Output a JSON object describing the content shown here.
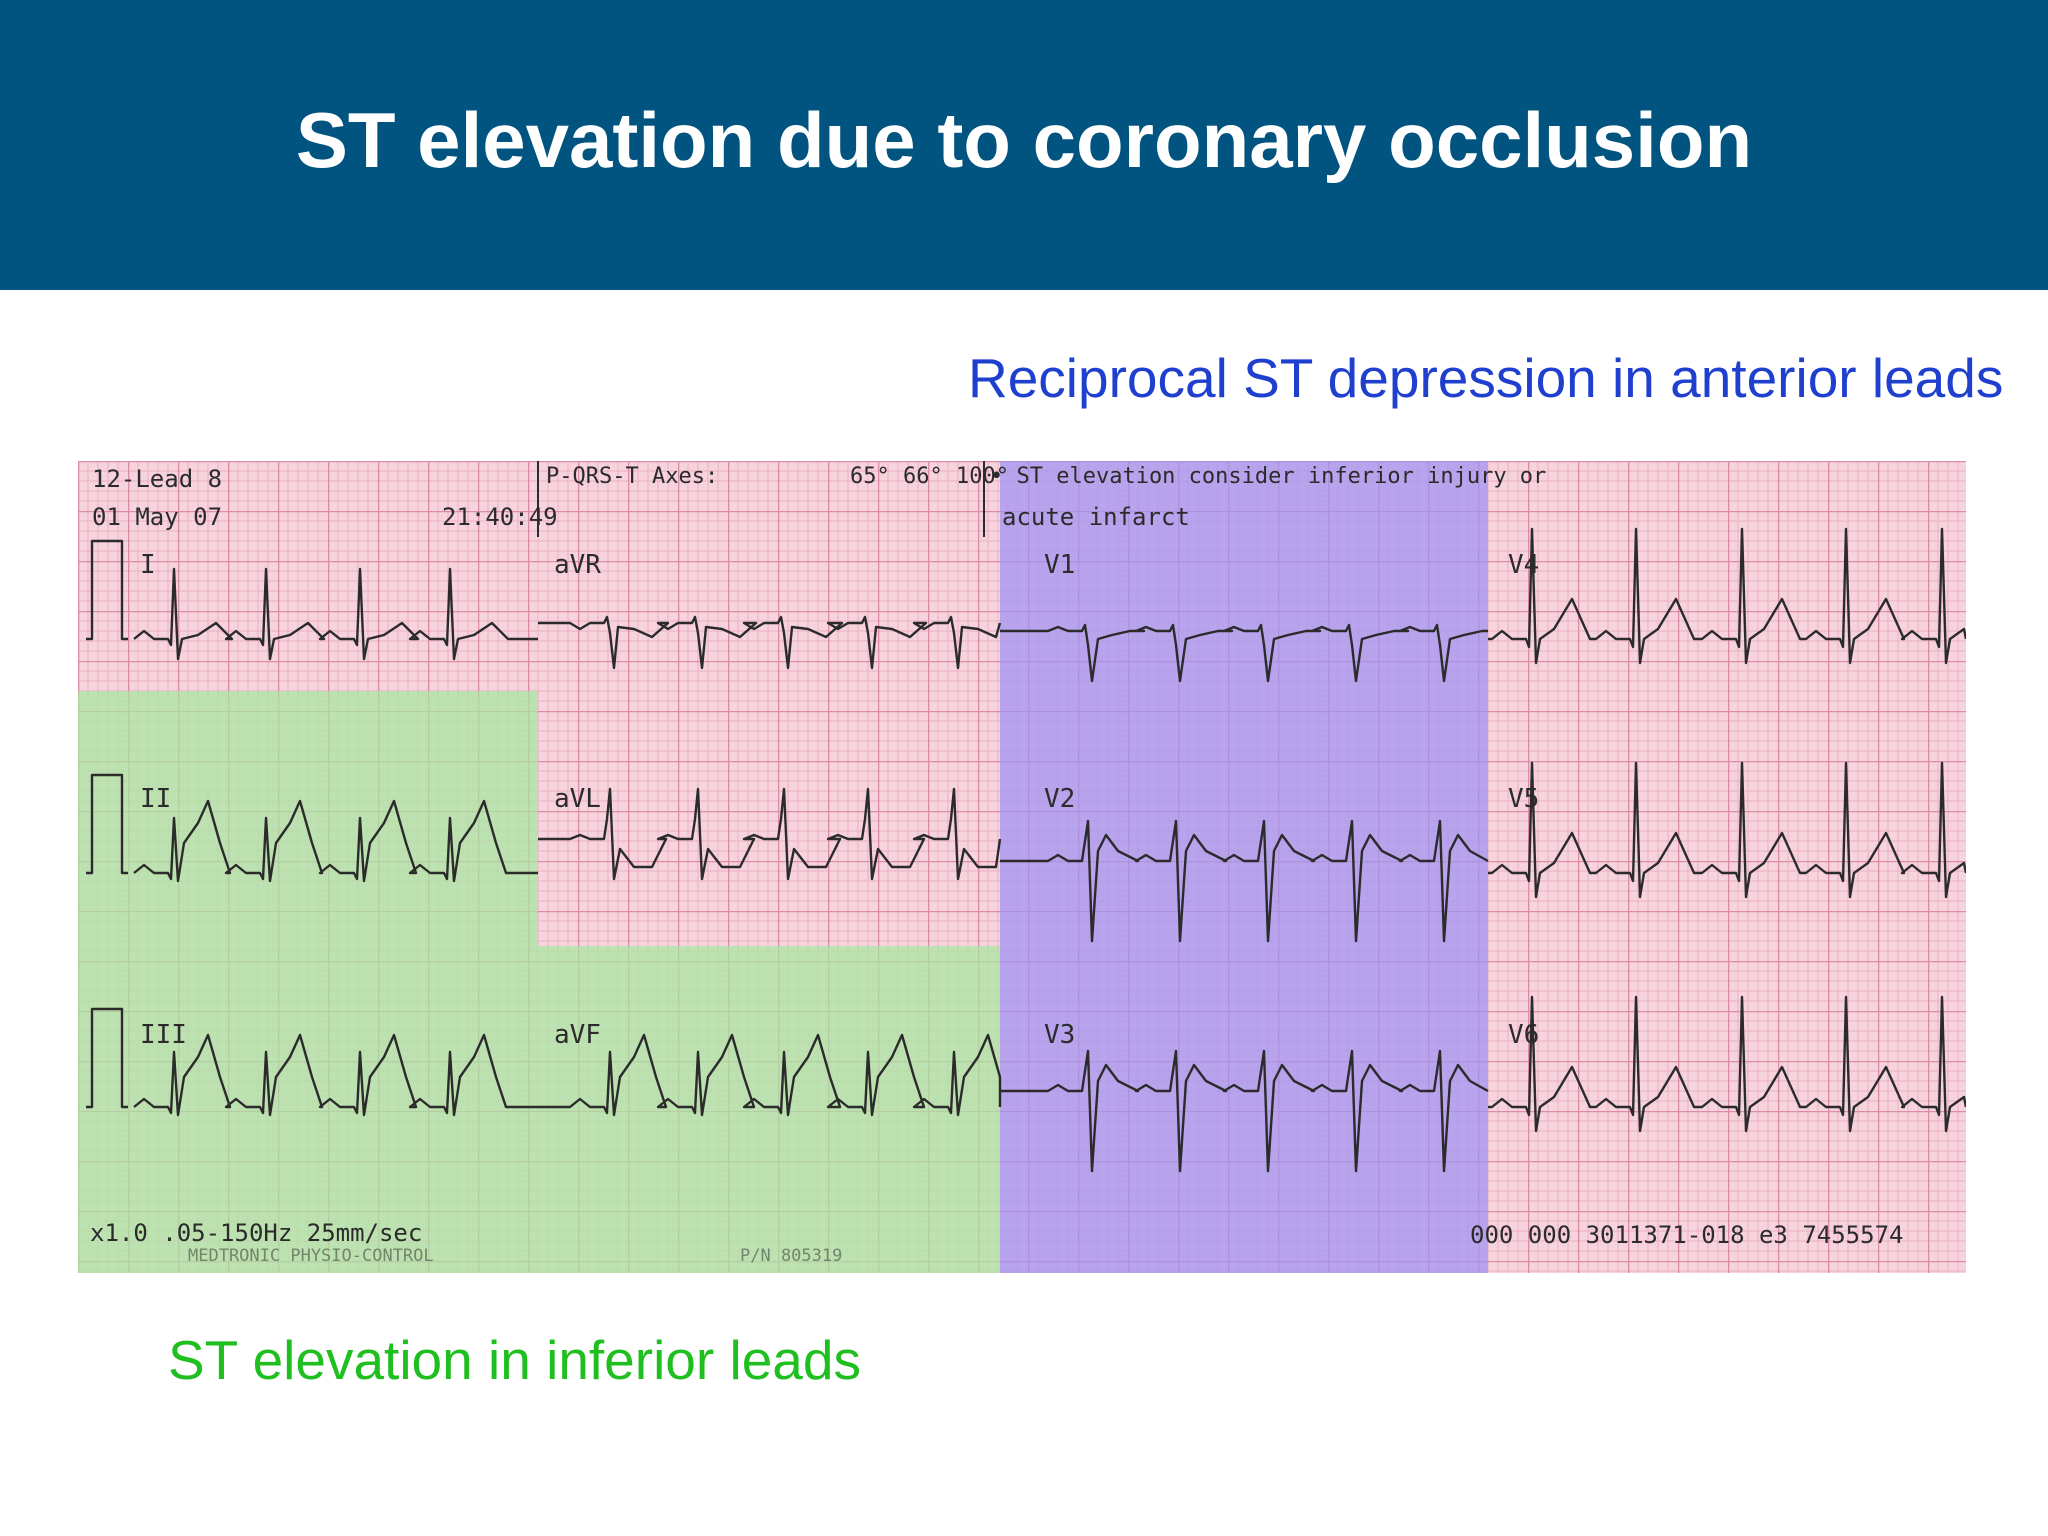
{
  "slide": {
    "title": "ST elevation due to coronary occlusion",
    "title_bar_color": "#00547f"
  },
  "annotations": {
    "reciprocal": {
      "text": "Reciprocal ST depression in anterior leads",
      "color": "#1f3fcf"
    },
    "elevation": {
      "text": "ST elevation in inferior leads",
      "color": "#1fbf1f"
    }
  },
  "ecg": {
    "header": {
      "device": "12-Lead 8",
      "date": "01 May 07",
      "time": "21:40:49",
      "axes_label": "P-QRS-T Axes:",
      "axes_values": "65° 66° 100°",
      "interpretation_1": "• ST elevation consider inferior injury or",
      "interpretation_2": "acute infarct"
    },
    "footer": {
      "settings": "x1.0 .05-150Hz 25mm/sec",
      "brand": "MEDTRONIC PHYSIO-CONTROL",
      "part_number": "P/N 805319",
      "serial": "000 000 3011371-018 e3 7455574"
    },
    "leads": [
      "I",
      "aVR",
      "V1",
      "V4",
      "II",
      "aVL",
      "V2",
      "V5",
      "III",
      "aVF",
      "V3",
      "V6"
    ],
    "colors": {
      "paper": "#f6d3dd",
      "grid_minor": "#ebb2c2",
      "grid_major": "#dc8ca4",
      "trace": "#2b2b2b",
      "inferior_highlight": "#a6e8a0",
      "anterior_highlight": "#9e92f2"
    }
  }
}
